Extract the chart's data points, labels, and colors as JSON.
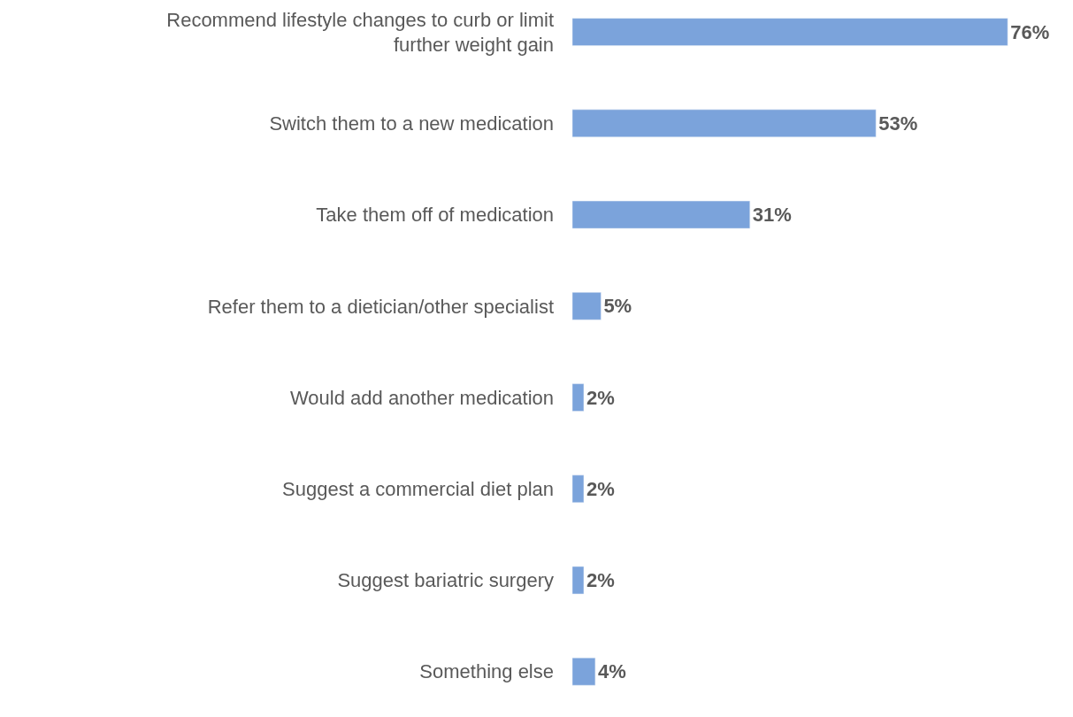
{
  "chart_data": {
    "type": "bar",
    "orientation": "horizontal",
    "categories": [
      "Recommend lifestyle changes to curb or limit further weight gain",
      "Switch them to a new medication",
      "Take them off of medication",
      "Refer them to a dietician/other specialist",
      "Would add another medication",
      "Suggest a commercial diet plan",
      "Suggest bariatric surgery",
      "Something else"
    ],
    "values": [
      76,
      53,
      31,
      5,
      2,
      2,
      2,
      4
    ],
    "value_labels": [
      "76%",
      "53%",
      "31%",
      "5%",
      "2%",
      "2%",
      "2%",
      "4%"
    ],
    "color": "#7ba3db"
  }
}
